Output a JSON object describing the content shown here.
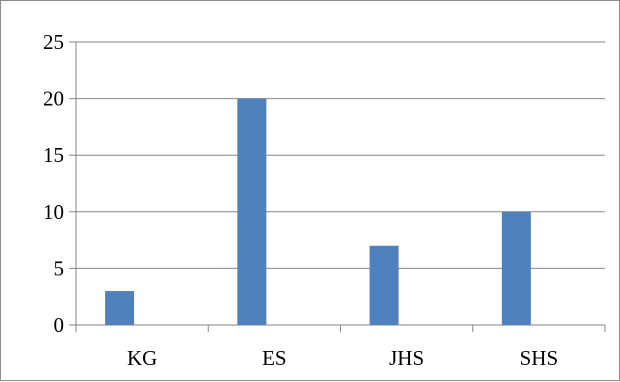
{
  "chart_data": {
    "type": "bar",
    "categories": [
      "KG",
      "ES",
      "JHS",
      "SHS"
    ],
    "values": [
      3,
      20,
      7,
      10
    ],
    "title": "",
    "xlabel": "",
    "ylabel": "",
    "ylim": [
      0,
      25
    ],
    "yticks": [
      0,
      5,
      10,
      15,
      20,
      25
    ],
    "grid": true,
    "legend": "none",
    "bar_color": "#4f81bd",
    "grid_color": "#868686"
  }
}
